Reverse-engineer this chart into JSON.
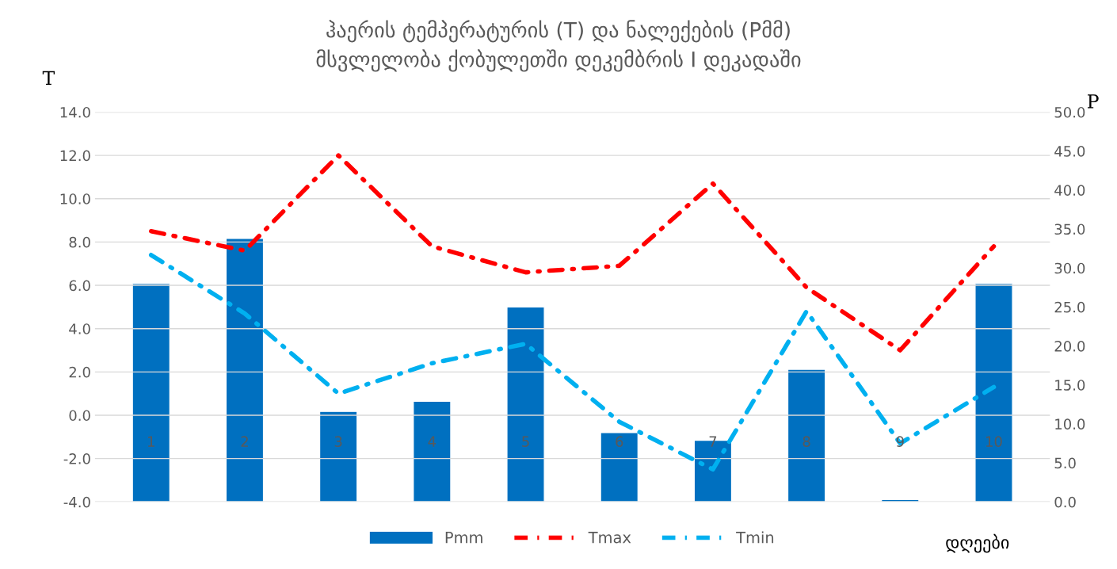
{
  "chart_data": {
    "type": "line",
    "title": "ჰაერის ტემპერატურის (T) და ნალექების (Pმმ)\nმსვლელობა ქობულეთში დეკემბრის I დეკადაში",
    "xlabel": "დღეები",
    "ylabel": "T",
    "y2label": "P",
    "categories": [
      "1",
      "2",
      "3",
      "4",
      "5",
      "6",
      "7",
      "8",
      "9",
      "10"
    ],
    "series": [
      {
        "name": "Pmm",
        "type": "bar",
        "axis": "y2",
        "color": "#0070c0",
        "values": [
          28.0,
          33.8,
          11.6,
          12.9,
          25.0,
          8.9,
          7.9,
          17.0,
          0.3,
          28.0
        ]
      },
      {
        "name": "Tmax",
        "color": "#ff0000",
        "line_style": "dashdot",
        "values": [
          8.5,
          7.6,
          12.0,
          7.8,
          6.6,
          6.9,
          10.7,
          5.9,
          3.0,
          7.8
        ]
      },
      {
        "name": "Tmin",
        "color": "#00b0f0",
        "line_style": "dashdot",
        "values": [
          7.4,
          4.7,
          1.0,
          2.4,
          3.3,
          -0.3,
          -2.5,
          4.8,
          -1.3,
          1.3
        ]
      }
    ],
    "ylim": [
      -4.0,
      14.0
    ],
    "yticks": [
      {
        "value": -4,
        "label": "-4.0"
      },
      {
        "value": -2,
        "label": "-2.0"
      },
      {
        "value": 0,
        "label": "0.0"
      },
      {
        "value": 2,
        "label": "2.0"
      },
      {
        "value": 4,
        "label": "4.0"
      },
      {
        "value": 6,
        "label": "6.0"
      },
      {
        "value": 8,
        "label": "8.0"
      },
      {
        "value": 10,
        "label": "10.0"
      },
      {
        "value": 12,
        "label": "12.0"
      },
      {
        "value": 14,
        "label": "14.0"
      }
    ],
    "y2lim": [
      0.0,
      50.0
    ],
    "y2ticks": [
      {
        "value": 0,
        "label": "0.0"
      },
      {
        "value": 5,
        "label": "5.0"
      },
      {
        "value": 10,
        "label": "10.0"
      },
      {
        "value": 15,
        "label": "15.0"
      },
      {
        "value": 20,
        "label": "20.0"
      },
      {
        "value": 25,
        "label": "25.0"
      },
      {
        "value": 30,
        "label": "30.0"
      },
      {
        "value": 35,
        "label": "35.0"
      },
      {
        "value": 40,
        "label": "40.0"
      },
      {
        "value": 45,
        "label": "45.0"
      },
      {
        "value": 50,
        "label": "50.0"
      }
    ],
    "grid": "y",
    "legend": "bottom"
  }
}
